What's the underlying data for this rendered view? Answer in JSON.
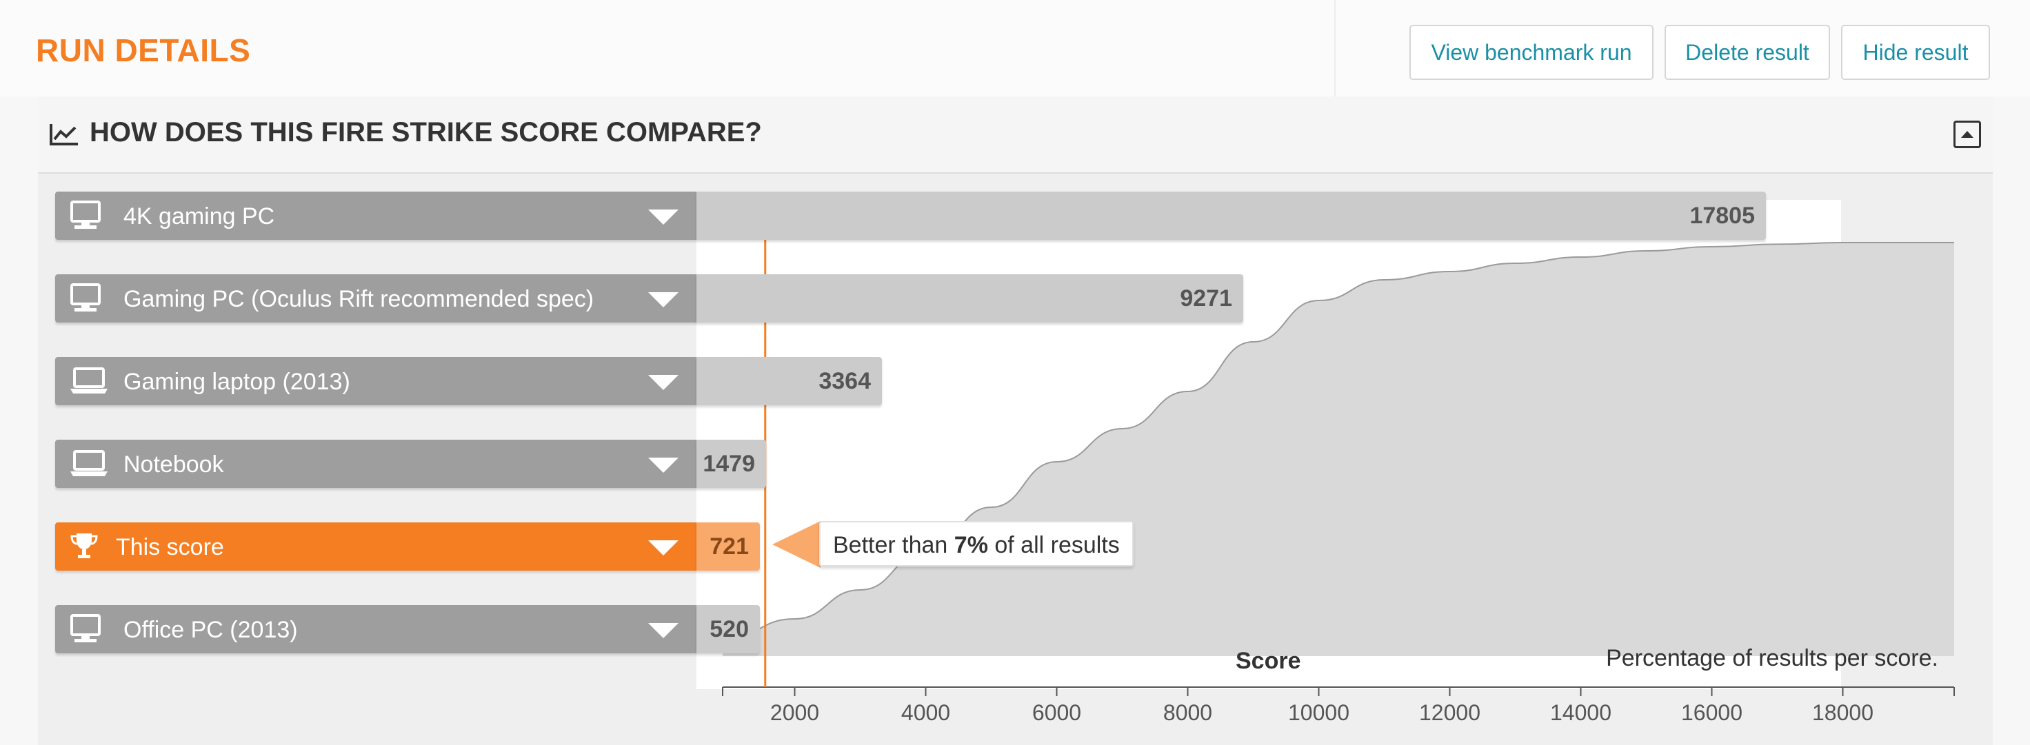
{
  "header": {
    "title": "RUN DETAILS",
    "buttons": {
      "view": "View benchmark run",
      "delete": "Delete result",
      "hide": "Hide result"
    }
  },
  "panel": {
    "title": "HOW DOES THIS FIRE STRIKE SCORE COMPARE?",
    "title_icon": "line-chart-icon",
    "collapse_icon": "collapse-up-icon"
  },
  "rows": [
    {
      "label": "4K gaming PC",
      "score": "17805",
      "icon": "desktop-icon"
    },
    {
      "label": "Gaming PC (Oculus Rift recommended spec)",
      "score": "9271",
      "icon": "desktop-icon"
    },
    {
      "label": "Gaming laptop (2013)",
      "score": "3364",
      "icon": "laptop-icon"
    },
    {
      "label": "Notebook",
      "score": "1479",
      "icon": "laptop-icon"
    },
    {
      "label": "This score",
      "score": "721",
      "icon": "trophy-icon",
      "active": true
    },
    {
      "label": "Office PC (2013)",
      "score": "520",
      "icon": "desktop-icon"
    }
  ],
  "tooltip": {
    "prefix": "Better than ",
    "percent": "7%",
    "suffix": " of all results"
  },
  "chart_data": {
    "type": "area",
    "xlabel": "Score",
    "annotation": "Percentage of results per score.",
    "x_ticks": [
      "2000",
      "4000",
      "6000",
      "8000",
      "10000",
      "12000",
      "14000",
      "16000",
      "18000"
    ],
    "xlim": [
      900,
      19700
    ],
    "marker_value": 1550,
    "colors": {
      "accent": "#f47e21",
      "bar": "#cbcbcb",
      "label_bg": "#9e9e9e",
      "area": "#d9d9d9"
    },
    "curve": [
      [
        900,
        4
      ],
      [
        2000,
        9
      ],
      [
        3000,
        16
      ],
      [
        4000,
        25
      ],
      [
        5000,
        36
      ],
      [
        6000,
        47
      ],
      [
        7000,
        55
      ],
      [
        8000,
        64
      ],
      [
        9000,
        76
      ],
      [
        10000,
        86
      ],
      [
        11000,
        91
      ],
      [
        12000,
        93
      ],
      [
        13000,
        95
      ],
      [
        14000,
        96.5
      ],
      [
        15000,
        98
      ],
      [
        16000,
        99
      ],
      [
        17000,
        99.6
      ],
      [
        18000,
        100
      ],
      [
        19700,
        100
      ]
    ]
  }
}
